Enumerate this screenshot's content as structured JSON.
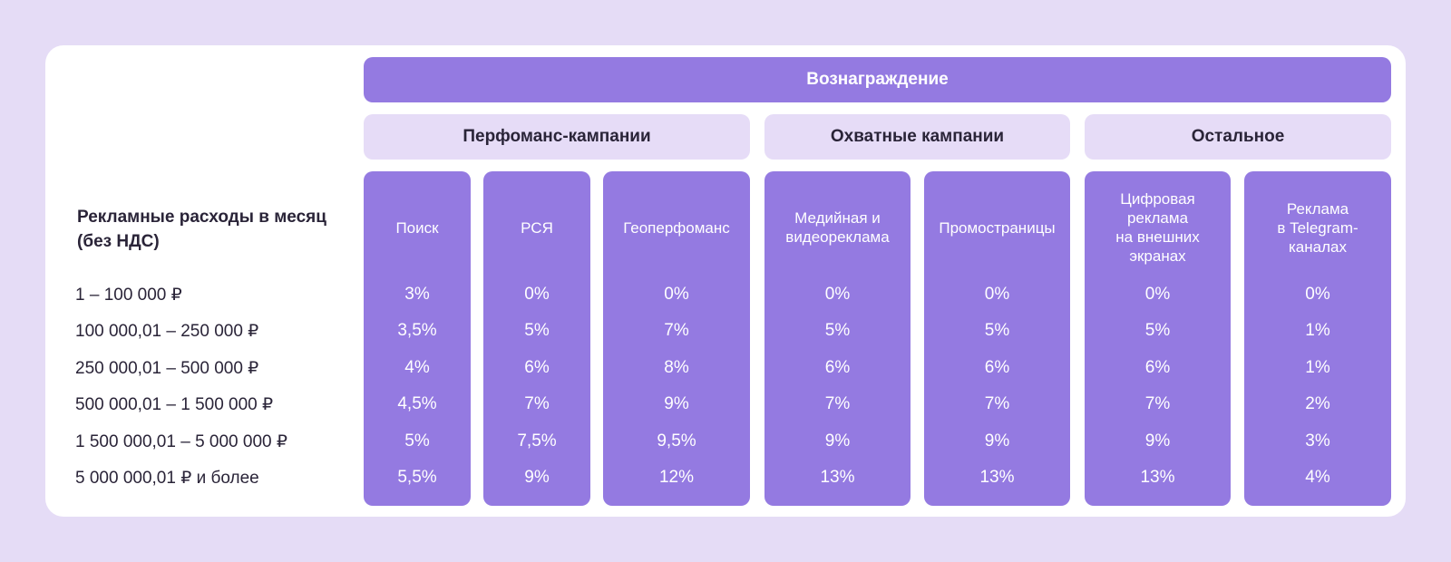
{
  "reward_title": "Вознаграждение",
  "row_header": "Рекламные расходы в месяц\n(без НДС)",
  "groups": [
    {
      "label": "Перфоманс-кампании"
    },
    {
      "label": "Охватные кампании"
    },
    {
      "label": "Остальное"
    }
  ],
  "columns": [
    {
      "label": "Поиск"
    },
    {
      "label": "РСЯ"
    },
    {
      "label": "Геоперфоманс"
    },
    {
      "label": "Медийная и\nвидеореклама"
    },
    {
      "label": "Промостраницы"
    },
    {
      "label": "Цифровая\nреклама\nна внешних\nэкранах"
    },
    {
      "label": "Реклама\nв Telegram-\nканалах"
    }
  ],
  "rows": [
    {
      "range": "1 – 100 000 ₽",
      "values": [
        "3%",
        "0%",
        "0%",
        "0%",
        "0%",
        "0%",
        "0%"
      ]
    },
    {
      "range": "100 000,01 – 250 000 ₽",
      "values": [
        "3,5%",
        "5%",
        "7%",
        "5%",
        "5%",
        "5%",
        "1%"
      ]
    },
    {
      "range": "250 000,01 – 500 000 ₽",
      "values": [
        "4%",
        "6%",
        "8%",
        "6%",
        "6%",
        "6%",
        "1%"
      ]
    },
    {
      "range": "500 000,01 – 1 500 000 ₽",
      "values": [
        "4,5%",
        "7%",
        "9%",
        "7%",
        "7%",
        "7%",
        "2%"
      ]
    },
    {
      "range": "1 500 000,01 – 5 000 000 ₽",
      "values": [
        "5%",
        "7,5%",
        "9,5%",
        "9%",
        "9%",
        "9%",
        "3%"
      ]
    },
    {
      "range": "5 000 000,01 ₽ и более",
      "values": [
        "5,5%",
        "9%",
        "12%",
        "13%",
        "13%",
        "13%",
        "4%"
      ]
    }
  ],
  "colors": {
    "page_background": "#e5dcf6",
    "card_background": "#ffffff",
    "accent_purple": "#947ae1",
    "group_background": "#e6dcf7",
    "text_dark": "#2a2438"
  }
}
